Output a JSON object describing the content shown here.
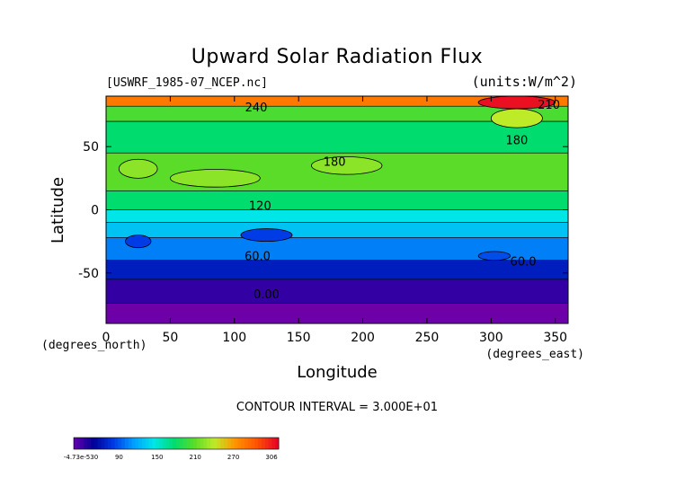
{
  "chart_data": {
    "type": "heatmap",
    "title": "Upward Solar Radiation Flux",
    "file_label": "[USWRF_1985-07_NCEP.nc]",
    "units_label": "(units:W/m^2)",
    "xlabel": "Longitude",
    "ylabel": "Latitude",
    "x_unit_label": "(degrees_east)",
    "y_unit_label": "(degrees_north)",
    "xlim": [
      0,
      360
    ],
    "ylim": [
      -90,
      90
    ],
    "x_ticks": [
      0,
      50,
      100,
      150,
      200,
      250,
      300,
      350
    ],
    "y_ticks": [
      -50,
      0,
      50
    ],
    "contour_interval_text": "CONTOUR INTERVAL = 3.000E+01",
    "contour_labels": [
      {
        "text": "240",
        "lon": 117,
        "lat": 78
      },
      {
        "text": "210",
        "lon": 345,
        "lat": 80
      },
      {
        "text": "180",
        "lon": 178,
        "lat": 35
      },
      {
        "text": "180",
        "lon": 320,
        "lat": 52
      },
      {
        "text": "120",
        "lon": 120,
        "lat": 0
      },
      {
        "text": "60.0",
        "lon": 118,
        "lat": -40
      },
      {
        "text": "60.0",
        "lon": 325,
        "lat": -44
      },
      {
        "text": "0.00",
        "lon": 125,
        "lat": -70
      }
    ],
    "lat_bands": [
      {
        "lat_top": 90,
        "lat_bottom": 82,
        "value": 255
      },
      {
        "lat_top": 82,
        "lat_bottom": 70,
        "value": 175
      },
      {
        "lat_top": 70,
        "lat_bottom": 45,
        "value": 150
      },
      {
        "lat_top": 45,
        "lat_bottom": 15,
        "value": 180
      },
      {
        "lat_top": 15,
        "lat_bottom": 0,
        "value": 150
      },
      {
        "lat_top": 0,
        "lat_bottom": -10,
        "value": 120
      },
      {
        "lat_top": -10,
        "lat_bottom": -22,
        "value": 105
      },
      {
        "lat_top": -22,
        "lat_bottom": -40,
        "value": 80
      },
      {
        "lat_top": -40,
        "lat_bottom": -55,
        "value": 45
      },
      {
        "lat_top": -55,
        "lat_bottom": -74,
        "value": 15
      },
      {
        "lat_top": -74,
        "lat_bottom": -90,
        "value": -5
      }
    ],
    "features": [
      {
        "lon0": 290,
        "lon1": 350,
        "lat0": 80,
        "lat1": 90,
        "value": 300
      },
      {
        "lon0": 300,
        "lon1": 340,
        "lat0": 65,
        "lat1": 80,
        "value": 210
      },
      {
        "lon0": 160,
        "lon1": 215,
        "lat0": 28,
        "lat1": 42,
        "value": 195
      },
      {
        "lon0": 50,
        "lon1": 120,
        "lat0": 18,
        "lat1": 32,
        "value": 195
      },
      {
        "lon0": 10,
        "lon1": 40,
        "lat0": 25,
        "lat1": 40,
        "value": 195
      },
      {
        "lon0": 105,
        "lon1": 145,
        "lat0": -25,
        "lat1": -15,
        "value": 60
      },
      {
        "lon0": 15,
        "lon1": 35,
        "lat0": -30,
        "lat1": -20,
        "value": 60
      },
      {
        "lon0": 290,
        "lon1": 315,
        "lat0": -40,
        "lat1": -33,
        "value": 65
      }
    ],
    "colorbar": {
      "tick_labels": [
        "-4.73e-530",
        "90",
        "150",
        "210",
        "270",
        "306"
      ],
      "min": 0,
      "max": 306
    }
  }
}
